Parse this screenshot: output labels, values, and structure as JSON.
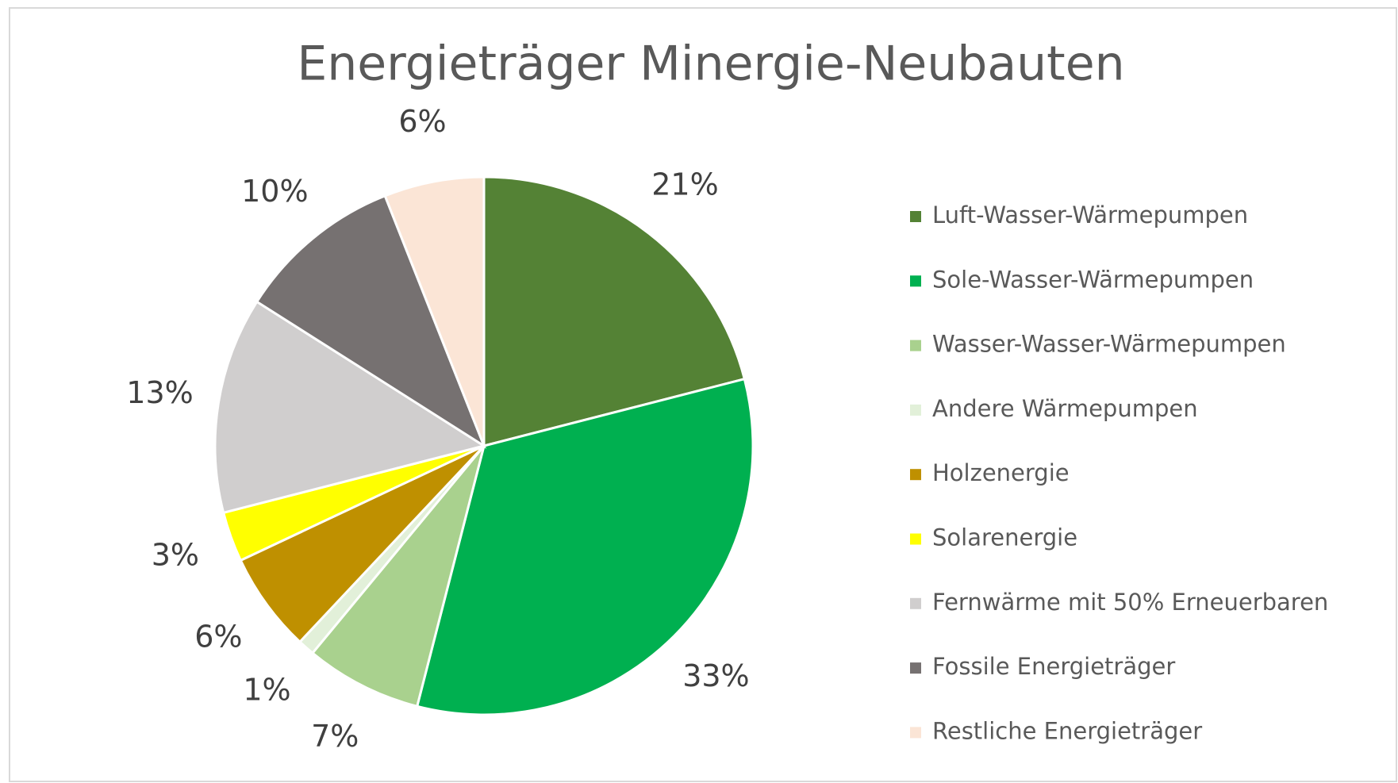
{
  "chart_data": {
    "type": "pie",
    "title": "Energieträger Minergie-Neubauten",
    "categories": [
      "Luft-Wasser-Wärmepumpen",
      "Sole-Wasser-Wärmepumpen",
      "Wasser-Wasser-Wärmepumpen",
      "Andere Wärmepumpen",
      "Holzenergie",
      "Solarenergie",
      "Fernwärme mit 50% Erneuerbaren",
      "Fossile Energieträger",
      "Restliche Energieträger"
    ],
    "values": [
      21,
      33,
      7,
      1,
      6,
      3,
      13,
      10,
      6
    ],
    "value_labels": [
      "21%",
      "33%",
      "7%",
      "1%",
      "6%",
      "3%",
      "13%",
      "10%",
      "6%"
    ],
    "colors": [
      "#548235",
      "#00b050",
      "#a9d18e",
      "#e2f0d9",
      "#bf9000",
      "#ffff00",
      "#d0cece",
      "#767171",
      "#fbe5d6"
    ],
    "legend": "right"
  }
}
